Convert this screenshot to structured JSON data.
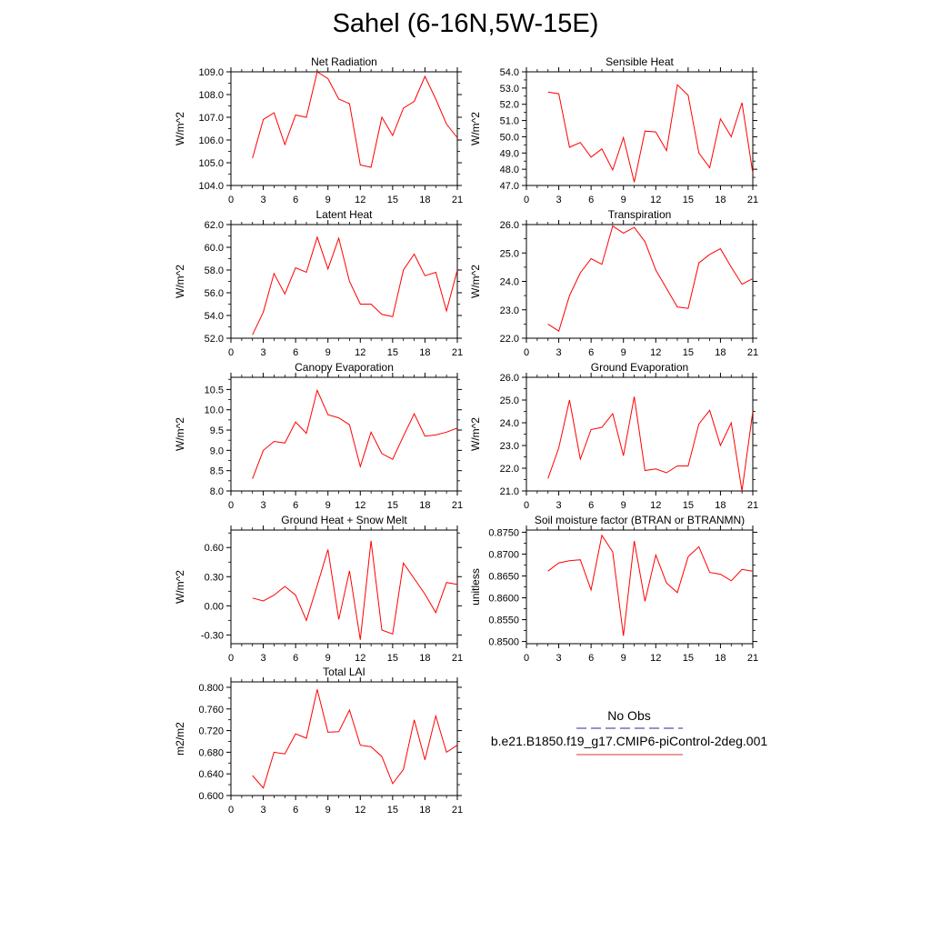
{
  "title": "Sahel (6-16N,5W-15E)",
  "legend": {
    "items": [
      {
        "label": "No Obs",
        "color": "#5555aa",
        "dash": true
      },
      {
        "label": "b.e21.B1850.f19_g17.CMIP6-piControl-2deg.001",
        "color": "#e06060",
        "dash": false
      }
    ]
  },
  "colors": {
    "series": "#ff0000",
    "axis": "#000000"
  },
  "chart_data": [
    {
      "type": "line",
      "title": "Net Radiation",
      "ylabel": "W/m^2",
      "xlim": [
        0,
        21
      ],
      "xticks": [
        0,
        3,
        6,
        9,
        12,
        15,
        18,
        21
      ],
      "ylim": [
        104.0,
        109.0
      ],
      "yticks": [
        "104.0",
        "105.0",
        "106.0",
        "107.0",
        "108.0",
        "109.0"
      ],
      "x": [
        2,
        3,
        4,
        5,
        6,
        7,
        8,
        9,
        10,
        11,
        12,
        13,
        14,
        15,
        16,
        17,
        18,
        19,
        20,
        21
      ],
      "values": [
        105.2,
        106.9,
        107.2,
        105.8,
        107.1,
        107.0,
        109.0,
        108.7,
        107.8,
        107.6,
        104.9,
        104.8,
        107.0,
        106.2,
        107.4,
        107.7,
        108.8,
        107.8,
        106.7,
        106.1
      ]
    },
    {
      "type": "line",
      "title": "Sensible Heat",
      "ylabel": "W/m^2",
      "xlim": [
        0,
        21
      ],
      "xticks": [
        0,
        3,
        6,
        9,
        12,
        15,
        18,
        21
      ],
      "ylim": [
        47.0,
        54.0
      ],
      "yticks": [
        "47.0",
        "48.0",
        "49.0",
        "50.0",
        "51.0",
        "52.0",
        "53.0",
        "54.0"
      ],
      "x": [
        2,
        3,
        4,
        5,
        6,
        7,
        8,
        9,
        10,
        11,
        12,
        13,
        14,
        15,
        16,
        17,
        18,
        19,
        20,
        21
      ],
      "values": [
        52.75,
        52.65,
        49.35,
        49.65,
        48.75,
        49.25,
        47.95,
        49.95,
        47.2,
        50.35,
        50.3,
        49.15,
        53.2,
        52.55,
        49.0,
        48.1,
        51.1,
        50.0,
        52.1,
        47.75
      ]
    },
    {
      "type": "line",
      "title": "Latent Heat",
      "ylabel": "W/m^2",
      "xlim": [
        0,
        21
      ],
      "xticks": [
        0,
        3,
        6,
        9,
        12,
        15,
        18,
        21
      ],
      "ylim": [
        52.0,
        62.0
      ],
      "yticks": [
        "52.0",
        "54.0",
        "56.0",
        "58.0",
        "60.0",
        "62.0"
      ],
      "x": [
        2,
        3,
        4,
        5,
        6,
        7,
        8,
        9,
        10,
        11,
        12,
        13,
        14,
        15,
        16,
        17,
        18,
        19,
        20,
        21
      ],
      "values": [
        52.3,
        54.3,
        57.7,
        55.9,
        58.2,
        57.8,
        60.9,
        58.1,
        60.8,
        57.0,
        55.0,
        55.0,
        54.1,
        53.9,
        58.0,
        59.4,
        57.5,
        57.8,
        54.4,
        58.0
      ]
    },
    {
      "type": "line",
      "title": "Transpiration",
      "ylabel": "W/m^2",
      "xlim": [
        0,
        21
      ],
      "xticks": [
        0,
        3,
        6,
        9,
        12,
        15,
        18,
        21
      ],
      "ylim": [
        22.0,
        26.0
      ],
      "yticks": [
        "22.0",
        "23.0",
        "24.0",
        "25.0",
        "26.0"
      ],
      "x": [
        2,
        3,
        4,
        5,
        6,
        7,
        8,
        9,
        10,
        11,
        12,
        13,
        14,
        15,
        16,
        17,
        18,
        19,
        20,
        21
      ],
      "values": [
        22.5,
        22.25,
        23.5,
        24.3,
        24.8,
        24.6,
        25.95,
        25.7,
        25.9,
        25.4,
        24.4,
        23.75,
        23.1,
        23.05,
        24.65,
        24.95,
        25.15,
        24.5,
        23.9,
        24.1
      ]
    },
    {
      "type": "line",
      "title": "Canopy Evaporation",
      "ylabel": "W/m^2",
      "xlim": [
        0,
        21
      ],
      "xticks": [
        0,
        3,
        6,
        9,
        12,
        15,
        18,
        21
      ],
      "ylim": [
        8.0,
        10.8
      ],
      "yticks": [
        "8.0",
        "8.5",
        "9.0",
        "9.5",
        "10.0",
        "10.5"
      ],
      "x": [
        2,
        3,
        4,
        5,
        6,
        7,
        8,
        9,
        10,
        11,
        12,
        13,
        14,
        15,
        16,
        17,
        18,
        19,
        20,
        21
      ],
      "values": [
        8.3,
        9.0,
        9.22,
        9.18,
        9.7,
        9.42,
        10.48,
        9.88,
        9.8,
        9.63,
        8.6,
        9.45,
        8.92,
        8.78,
        9.35,
        9.9,
        9.35,
        9.38,
        9.45,
        9.55
      ]
    },
    {
      "type": "line",
      "title": "Ground Evaporation",
      "ylabel": "W/m^2",
      "xlim": [
        0,
        21
      ],
      "xticks": [
        0,
        3,
        6,
        9,
        12,
        15,
        18,
        21
      ],
      "ylim": [
        21.0,
        26.0
      ],
      "yticks": [
        "21.0",
        "22.0",
        "23.0",
        "24.0",
        "25.0",
        "26.0"
      ],
      "x": [
        2,
        3,
        4,
        5,
        6,
        7,
        8,
        9,
        10,
        11,
        12,
        13,
        14,
        15,
        16,
        17,
        18,
        19,
        20,
        21
      ],
      "values": [
        21.55,
        22.9,
        25.0,
        22.4,
        23.7,
        23.8,
        24.4,
        22.55,
        25.15,
        21.9,
        21.97,
        21.8,
        22.1,
        22.1,
        23.95,
        24.55,
        23.0,
        24.0,
        21.0,
        24.5
      ]
    },
    {
      "type": "line",
      "title": "Ground Heat + Snow Melt",
      "ylabel": "W/m^2",
      "xlim": [
        0,
        21
      ],
      "xticks": [
        0,
        3,
        6,
        9,
        12,
        15,
        18,
        21
      ],
      "ylim": [
        -0.39,
        0.78
      ],
      "yticks": [
        "-0.30",
        "0.00",
        "0.30",
        "0.60"
      ],
      "x": [
        2,
        3,
        4,
        5,
        6,
        7,
        8,
        9,
        10,
        11,
        12,
        13,
        14,
        15,
        16,
        17,
        18,
        19,
        20,
        21
      ],
      "values": [
        0.08,
        0.05,
        0.11,
        0.2,
        0.11,
        -0.15,
        0.21,
        0.58,
        -0.14,
        0.36,
        -0.35,
        0.67,
        -0.25,
        -0.29,
        0.44,
        0.28,
        0.12,
        -0.07,
        0.24,
        0.22
      ]
    },
    {
      "type": "line",
      "title": "Soil moisture factor (BTRAN or BTRANMN)",
      "ylabel": "unitless",
      "xlim": [
        0,
        21
      ],
      "xticks": [
        0,
        3,
        6,
        9,
        12,
        15,
        18,
        21
      ],
      "ylim": [
        0.8495,
        0.8755
      ],
      "yticks": [
        "0.8500",
        "0.8550",
        "0.8600",
        "0.8650",
        "0.8700",
        "0.8750"
      ],
      "x": [
        2,
        3,
        4,
        5,
        6,
        7,
        8,
        9,
        10,
        11,
        12,
        13,
        14,
        15,
        16,
        17,
        18,
        19,
        20,
        21
      ],
      "values": [
        0.8661,
        0.868,
        0.8685,
        0.8687,
        0.8618,
        0.8743,
        0.8705,
        0.8513,
        0.873,
        0.8592,
        0.8698,
        0.8634,
        0.8612,
        0.8694,
        0.8717,
        0.8658,
        0.8654,
        0.8639,
        0.8665,
        0.8661
      ]
    },
    {
      "type": "line",
      "title": "Total LAI",
      "ylabel": "m2/m2",
      "xlim": [
        0,
        21
      ],
      "xticks": [
        0,
        3,
        6,
        9,
        12,
        15,
        18,
        21
      ],
      "ylim": [
        0.6,
        0.81
      ],
      "yticks": [
        "0.600",
        "0.640",
        "0.680",
        "0.720",
        "0.760",
        "0.800"
      ],
      "x": [
        2,
        3,
        4,
        5,
        6,
        7,
        8,
        9,
        10,
        11,
        12,
        13,
        14,
        15,
        16,
        17,
        18,
        19,
        20,
        21
      ],
      "values": [
        0.637,
        0.614,
        0.68,
        0.677,
        0.714,
        0.706,
        0.796,
        0.717,
        0.718,
        0.758,
        0.693,
        0.69,
        0.672,
        0.622,
        0.648,
        0.74,
        0.666,
        0.747,
        0.68,
        0.693
      ]
    }
  ]
}
